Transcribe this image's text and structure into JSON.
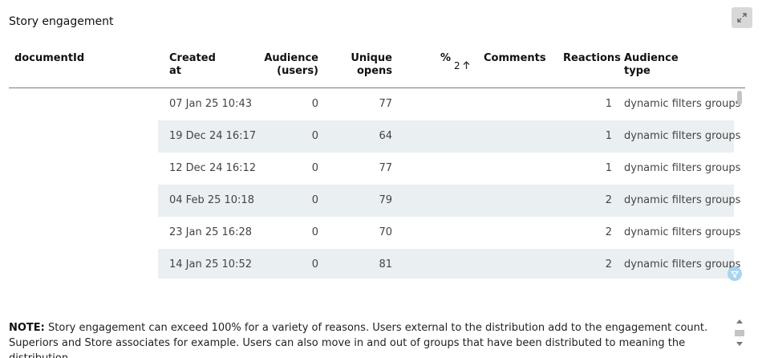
{
  "panel": {
    "title": "Story engagement",
    "expand_icon": "expand-icon"
  },
  "table": {
    "headers": {
      "documentId": "documentId",
      "created_l1": "Created",
      "created_l2": "at",
      "audience_l1": "Audience",
      "audience_l2": "(users)",
      "unique_l1": "Unique",
      "unique_l2": "opens",
      "percent": "%",
      "percent_sort_index": "2",
      "percent_sort_icon": "arrow-up-icon",
      "comments": "Comments",
      "reactions": "Reactions",
      "audtype_l1": "Audience",
      "audtype_l2": "type"
    },
    "rows": [
      {
        "created": "07 Jan 25 10:43",
        "audience": "0",
        "unique": "77",
        "reactions": "1",
        "type": "dynamic filters groups"
      },
      {
        "created": "19 Dec 24 16:17",
        "audience": "0",
        "unique": "64",
        "reactions": "1",
        "type": "dynamic filters groups"
      },
      {
        "created": "12 Dec 24 16:12",
        "audience": "0",
        "unique": "77",
        "reactions": "1",
        "type": "dynamic filters groups"
      },
      {
        "created": "04 Feb 25 10:18",
        "audience": "0",
        "unique": "79",
        "reactions": "2",
        "type": "dynamic filters groups"
      },
      {
        "created": "23 Jan 25 16:28",
        "audience": "0",
        "unique": "70",
        "reactions": "2",
        "type": "dynamic filters groups"
      },
      {
        "created": "14 Jan 25 10:52",
        "audience": "0",
        "unique": "81",
        "reactions": "2",
        "type": "dynamic filters groups"
      }
    ],
    "filter_icon": "filter-icon"
  },
  "note": {
    "label": "NOTE:",
    "text": " Story engagement can exceed 100% for a variety of reasons. Users external to the distribution add to the engagement count. Superiors and Store associates for example. Users can also move in and out of groups that have been distributed to meaning the distribution"
  },
  "colors": {
    "row_alt": "#eaeff2",
    "header_rule": "#7a7a7a",
    "filter_badge": "#a9d4ef"
  }
}
